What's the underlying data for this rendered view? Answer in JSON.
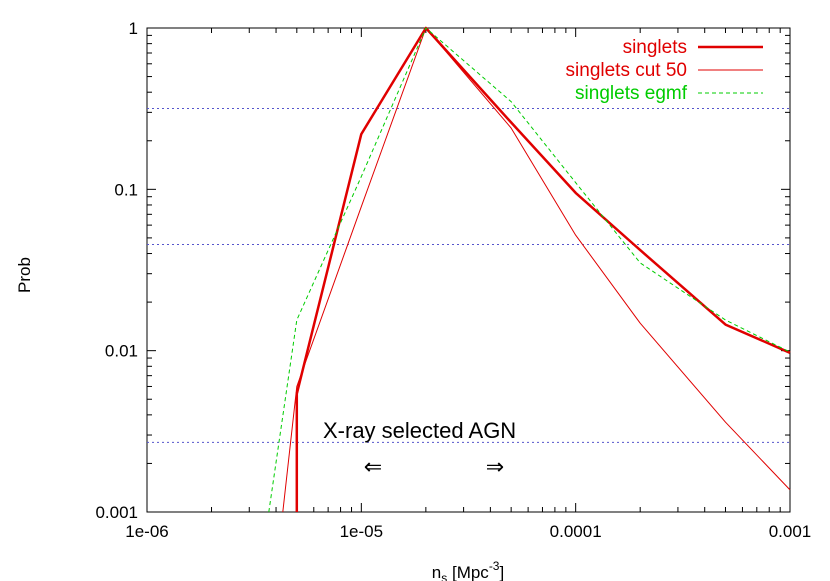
{
  "chart_data": {
    "type": "line",
    "xscale": "log",
    "yscale": "log",
    "xlim": [
      1e-06,
      0.001
    ],
    "ylim": [
      0.001,
      1
    ],
    "xlabel": {
      "base": "n",
      "sub": "s",
      "mid": " [Mpc",
      "sup": "-3",
      "end": "]"
    },
    "ylabel": "Prob",
    "xticks": [
      {
        "value": 1e-06,
        "label": "1e-06"
      },
      {
        "value": 1e-05,
        "label": "1e-05"
      },
      {
        "value": 0.0001,
        "label": "0.0001"
      },
      {
        "value": 0.001,
        "label": "0.001"
      }
    ],
    "yticks": [
      {
        "value": 0.001,
        "label": "0.001"
      },
      {
        "value": 0.01,
        "label": "0.01"
      },
      {
        "value": 0.1,
        "label": "0.1"
      },
      {
        "value": 1,
        "label": "1"
      }
    ],
    "legend_position": "top-right",
    "series": [
      {
        "name": "singlets",
        "color": "#e00000",
        "style": "thick",
        "x": [
          5e-06,
          5e-06,
          1e-05,
          2e-05,
          5e-05,
          0.0001,
          0.0002,
          0.0005,
          0.001
        ],
        "y": [
          0.001,
          0.0054,
          0.22,
          1.0,
          0.26,
          0.095,
          0.042,
          0.0145,
          0.0097
        ]
      },
      {
        "name": "singlets cut 50",
        "color": "#e00000",
        "style": "thin",
        "x": [
          4.3e-06,
          5e-06,
          1e-05,
          2e-05,
          5e-05,
          0.0001,
          0.0002,
          0.0005,
          0.001
        ],
        "y": [
          0.001,
          0.006,
          0.078,
          1.0,
          0.24,
          0.052,
          0.0148,
          0.0036,
          0.00137
        ]
      },
      {
        "name": "singlets  egmf",
        "color": "#00cc00",
        "style": "dashed",
        "x": [
          3.7e-06,
          5e-06,
          1e-05,
          2e-05,
          5e-05,
          0.0001,
          0.0002,
          0.0005,
          0.001
        ],
        "y": [
          0.001,
          0.0155,
          0.12,
          1.0,
          0.35,
          0.11,
          0.035,
          0.0155,
          0.0098
        ]
      }
    ],
    "reference_lines": [
      {
        "y": 0.317,
        "color": "#5555cc"
      },
      {
        "y": 0.0455,
        "color": "#5555cc"
      },
      {
        "y": 0.0027,
        "color": "#5555cc"
      }
    ],
    "annotations": {
      "text": "X-ray selected AGN",
      "left_arrow": "⇐",
      "right_arrow": "⇒"
    }
  }
}
